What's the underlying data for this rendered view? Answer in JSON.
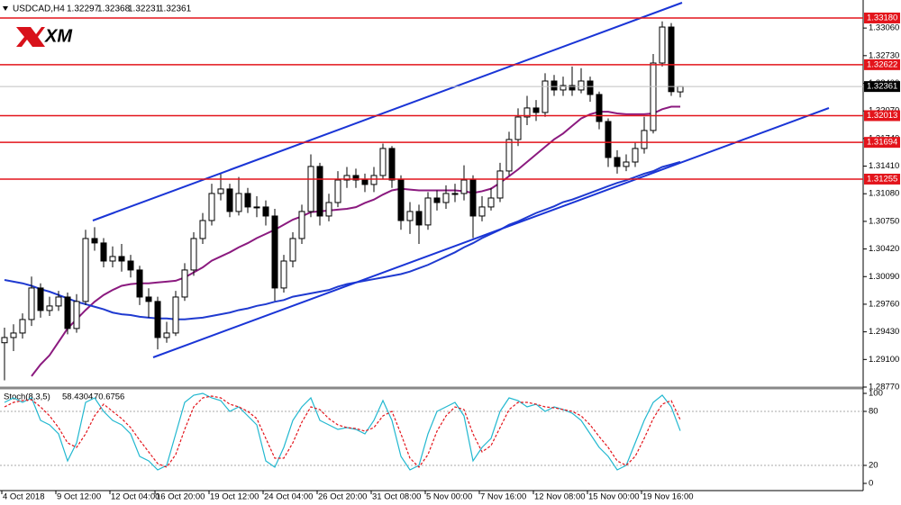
{
  "chart_data": [
    {
      "type": "candlestick",
      "symbol": "USDCAD,H4",
      "watermark": "XM",
      "categories": [
        "4 Oct 2018",
        null,
        null,
        null,
        null,
        null,
        "9 Oct 12:00",
        null,
        null,
        null,
        null,
        null,
        "12 Oct 04:00",
        null,
        null,
        null,
        null,
        "16 Oct 20:00",
        null,
        null,
        null,
        null,
        null,
        "19 Oct 12:00",
        null,
        null,
        null,
        null,
        null,
        "24 Oct 04:00",
        null,
        null,
        null,
        null,
        null,
        "26 Oct 20:00",
        null,
        null,
        null,
        null,
        null,
        "31 Oct 08:00",
        null,
        null,
        null,
        null,
        null,
        "5 Nov 00:00",
        null,
        null,
        null,
        null,
        null,
        "7 Nov 16:00",
        null,
        null,
        null,
        null,
        null,
        "12 Nov 08:00",
        null,
        null,
        null,
        null,
        null,
        "15 Nov 00:00",
        null,
        null,
        null,
        null,
        null,
        "19 Nov 16:00",
        null,
        null,
        null,
        null
      ],
      "open": [
        1.293,
        1.29362,
        1.29416,
        1.29577,
        1.29954,
        1.29685,
        1.29739,
        1.29846,
        1.2947,
        1.29793,
        1.30545,
        1.30492,
        1.30276,
        1.3033,
        1.30276,
        1.30169,
        1.29846,
        1.29793,
        1.29362,
        1.29416,
        1.29846,
        1.30169,
        1.30545,
        1.3076,
        1.31083,
        1.31137,
        1.30868,
        1.31083,
        1.30922,
        1.30922,
        1.30814,
        1.29954,
        1.30276,
        1.30545,
        1.30868,
        1.31406,
        1.30814,
        1.30975,
        1.31244,
        1.31298,
        1.31244,
        1.31191,
        1.31298,
        1.31621,
        1.31244,
        1.3076,
        1.30868,
        1.30707,
        1.31029,
        1.30975,
        1.31083,
        1.31083,
        1.31244,
        1.30814,
        1.30922,
        1.31029,
        1.31352,
        1.31728,
        1.31997,
        1.32105,
        1.32051,
        1.32427,
        1.3232,
        1.32373,
        1.3232,
        1.32427,
        1.32266,
        1.31943,
        1.31513,
        1.31406,
        1.31459,
        1.31621,
        1.31836,
        1.32642,
        1.33072,
        1.32297
      ],
      "high": [
        1.2948,
        1.2952,
        1.2965,
        1.3009,
        1.3001,
        1.2985,
        1.2992,
        1.299,
        1.2988,
        1.3065,
        1.3068,
        1.3055,
        1.3045,
        1.3048,
        1.3035,
        1.3022,
        1.2995,
        1.2985,
        1.2955,
        1.2992,
        1.3025,
        1.3062,
        1.3085,
        1.312,
        1.3133,
        1.312,
        1.3128,
        1.3115,
        1.3105,
        1.31,
        1.309,
        1.3035,
        1.3062,
        1.3095,
        1.3155,
        1.3145,
        1.3108,
        1.3135,
        1.314,
        1.3138,
        1.3132,
        1.314,
        1.3168,
        1.3165,
        1.313,
        1.3098,
        1.3095,
        1.311,
        1.3112,
        1.3118,
        1.312,
        1.3142,
        1.313,
        1.3105,
        1.3115,
        1.3145,
        1.3182,
        1.321,
        1.3225,
        1.322,
        1.3252,
        1.325,
        1.3248,
        1.326,
        1.3258,
        1.3248,
        1.323,
        1.3198,
        1.316,
        1.3155,
        1.317,
        1.32,
        1.3275,
        1.3314,
        1.3312,
        1.32368
      ],
      "low": [
        1.2885,
        1.292,
        1.2935,
        1.295,
        1.296,
        1.2962,
        1.2968,
        1.294,
        1.2942,
        1.2975,
        1.304,
        1.302,
        1.302,
        1.3015,
        1.3008,
        1.2975,
        1.296,
        1.2922,
        1.293,
        1.2938,
        1.298,
        1.301,
        1.3048,
        1.307,
        1.31,
        1.308,
        1.3082,
        1.3085,
        1.308,
        1.307,
        1.298,
        1.299,
        1.302,
        1.3048,
        1.308,
        1.307,
        1.3075,
        1.3092,
        1.3115,
        1.3115,
        1.311,
        1.311,
        1.3125,
        1.3115,
        1.3065,
        1.306,
        1.3048,
        1.3065,
        1.3088,
        1.309,
        1.3098,
        1.31,
        1.3055,
        1.3075,
        1.3088,
        1.3098,
        1.313,
        1.3165,
        1.319,
        1.3195,
        1.32,
        1.3225,
        1.3225,
        1.3225,
        1.3228,
        1.3218,
        1.3185,
        1.314,
        1.3132,
        1.3135,
        1.314,
        1.3156,
        1.318,
        1.326,
        1.3225,
        1.32231
      ],
      "close": [
        1.29362,
        1.29416,
        1.29577,
        1.29954,
        1.29685,
        1.29739,
        1.29846,
        1.2947,
        1.29793,
        1.30545,
        1.30492,
        1.30276,
        1.3033,
        1.30276,
        1.30169,
        1.29846,
        1.29793,
        1.29362,
        1.29416,
        1.29846,
        1.30169,
        1.30545,
        1.3076,
        1.31083,
        1.31137,
        1.30868,
        1.31083,
        1.30922,
        1.30922,
        1.30814,
        1.29954,
        1.30276,
        1.30545,
        1.30868,
        1.31406,
        1.30814,
        1.30975,
        1.31244,
        1.31298,
        1.31244,
        1.31191,
        1.31298,
        1.31621,
        1.31244,
        1.3076,
        1.30868,
        1.30707,
        1.31029,
        1.30975,
        1.31083,
        1.31083,
        1.31244,
        1.30814,
        1.30922,
        1.31029,
        1.31352,
        1.31728,
        1.31997,
        1.32105,
        1.32051,
        1.32427,
        1.3232,
        1.32373,
        1.3232,
        1.32427,
        1.32266,
        1.31943,
        1.31513,
        1.31406,
        1.31459,
        1.31621,
        1.31836,
        1.32642,
        1.33072,
        1.323,
        1.32361
      ],
      "overlays": [
        {
          "color": "#8b1a7f",
          "values": [
            null,
            null,
            null,
            1.289,
            1.2904,
            1.2915,
            1.2931,
            1.2947,
            1.2958,
            1.2969,
            1.2979,
            1.2987,
            1.2993,
            1.2998,
            1.3,
            1.3001,
            1.3001,
            1.3002,
            1.3003,
            1.3004,
            1.3008,
            1.3014,
            1.302,
            1.3028,
            1.3033,
            1.3038,
            1.3044,
            1.3049,
            1.3055,
            1.306,
            1.3065,
            1.3071,
            1.3077,
            1.3081,
            1.3086,
            1.3087,
            1.3088,
            1.3089,
            1.309,
            1.3092,
            1.3097,
            1.3101,
            1.3107,
            1.3112,
            1.3114,
            1.3113,
            1.3112,
            1.3112,
            1.3112,
            1.3112,
            1.3112,
            1.3111,
            1.3109,
            1.3111,
            1.3114,
            1.3121,
            1.3129,
            1.3137,
            1.3146,
            1.3155,
            1.3164,
            1.3173,
            1.318,
            1.3189,
            1.3198,
            1.3203,
            1.3206,
            1.3206,
            1.3204,
            1.3203,
            1.3203,
            1.3203,
            1.3204,
            1.3209,
            1.3212,
            1.3212
          ]
        },
        {
          "color": "#1f3ad0",
          "values": [
            1.3005,
            1.3003,
            1.3001,
            1.2998,
            1.2994,
            1.2991,
            1.2987,
            1.2983,
            1.2979,
            1.2976,
            1.2973,
            1.297,
            1.2966,
            1.2964,
            1.2963,
            1.2961,
            1.296,
            1.2959,
            1.2959,
            1.2958,
            1.2958,
            1.2959,
            1.296,
            1.2962,
            1.2964,
            1.2966,
            1.2969,
            1.2971,
            1.2974,
            1.2976,
            1.2979,
            1.2981,
            1.2985,
            1.2987,
            1.2989,
            1.2991,
            1.2993,
            1.2997,
            1.3,
            1.3002,
            1.3004,
            1.3006,
            1.3008,
            1.301,
            1.3012,
            1.3015,
            1.3019,
            1.3023,
            1.3028,
            1.3033,
            1.3038,
            1.3044,
            1.3049,
            1.3055,
            1.306,
            1.3065,
            1.3071,
            1.3075,
            1.308,
            1.3085,
            1.3089,
            1.3093,
            1.3098,
            1.3101,
            1.3105,
            1.3109,
            1.3113,
            1.3117,
            1.3121,
            1.3124,
            1.3128,
            1.3132,
            1.3135,
            1.314,
            1.3143,
            1.3146
          ]
        }
      ],
      "levels": [
        {
          "value": 1.3318,
          "label": "1.33180"
        },
        {
          "value": 1.32622,
          "label": "1.32622"
        },
        {
          "value": 1.32013,
          "label": "1.32013"
        },
        {
          "value": 1.31694,
          "label": "1.31694"
        },
        {
          "value": 1.31255,
          "label": "1.31255"
        }
      ],
      "level_color": "#e3141b",
      "ylim": [
        1.2877,
        1.33395
      ],
      "yticks": [
        {
          "value": 1.3306,
          "label": "1.33060"
        },
        {
          "value": 1.3273,
          "label": "1.32730"
        },
        {
          "value": 1.324,
          "label": "1.32400"
        },
        {
          "value": 1.3207,
          "label": "1.32070"
        },
        {
          "value": 1.3174,
          "label": "1.31740"
        },
        {
          "value": 1.3141,
          "label": "1.31410"
        },
        {
          "value": 1.3108,
          "label": "1.31080"
        },
        {
          "value": 1.3075,
          "label": "1.30750"
        },
        {
          "value": 1.3042,
          "label": "1.30420"
        },
        {
          "value": 1.3009,
          "label": "1.30090"
        },
        {
          "value": 1.2976,
          "label": "1.29760"
        },
        {
          "value": 1.2943,
          "label": "1.29430"
        },
        {
          "value": 1.291,
          "label": "1.29100"
        },
        {
          "value": 1.2877,
          "label": "1.28770"
        }
      ]
    },
    {
      "type": "line",
      "title": "Stoch(8,3,5)",
      "series": [
        {
          "color": "#22b8d0",
          "values": [
            90,
            95,
            90,
            95,
            70,
            65,
            55,
            25,
            45,
            90,
            95,
            80,
            70,
            65,
            55,
            30,
            25,
            15,
            20,
            55,
            90,
            98,
            100,
            95,
            92,
            80,
            85,
            75,
            65,
            25,
            18,
            40,
            70,
            85,
            95,
            70,
            65,
            60,
            62,
            60,
            55,
            70,
            92,
            70,
            30,
            15,
            20,
            55,
            80,
            85,
            90,
            75,
            25,
            40,
            50,
            80,
            95,
            92,
            85,
            88,
            80,
            85,
            82,
            78,
            70,
            55,
            40,
            30,
            15,
            20,
            45,
            70,
            90,
            98,
            85,
            58.4304
          ]
        },
        {
          "color": "#e3141b",
          "dashed": true,
          "values": [
            85,
            90,
            92,
            93,
            85,
            75,
            62,
            45,
            40,
            55,
            75,
            88,
            80,
            72,
            62,
            48,
            35,
            22,
            18,
            32,
            60,
            85,
            95,
            97,
            95,
            88,
            85,
            80,
            72,
            50,
            28,
            28,
            45,
            68,
            85,
            82,
            72,
            65,
            62,
            61,
            58,
            62,
            75,
            80,
            55,
            28,
            18,
            32,
            58,
            75,
            85,
            82,
            55,
            35,
            42,
            62,
            82,
            90,
            90,
            88,
            85,
            84,
            82,
            80,
            75,
            65,
            52,
            40,
            25,
            20,
            30,
            50,
            72,
            88,
            92,
            70.6756
          ]
        }
      ],
      "ylim": [
        -8,
        104
      ],
      "yticks": [
        100,
        80,
        20,
        0
      ],
      "levels": [
        80,
        20
      ]
    }
  ]
}
